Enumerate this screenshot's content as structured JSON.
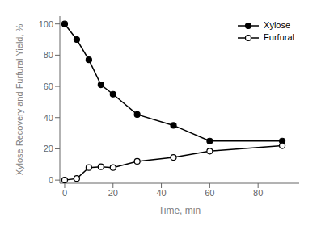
{
  "chart_data": {
    "type": "line",
    "xlabel": "Time, min",
    "ylabel": "Xylose Recovery and Furfural Yield, %",
    "x": [
      0,
      5,
      10,
      15,
      20,
      30,
      45,
      60,
      90
    ],
    "series": [
      {
        "name": "Xylose",
        "color": "#000000",
        "marker": "filled_circle",
        "values": [
          100,
          90,
          77,
          61,
          55,
          42,
          35,
          25,
          25
        ]
      },
      {
        "name": "Furfural",
        "color": "#000000",
        "marker": "open_circle",
        "values": [
          0,
          1,
          8,
          8.5,
          8,
          12,
          14.5,
          18.5,
          22
        ]
      }
    ],
    "xlim": [
      -2,
      97
    ],
    "xticks": [
      0,
      20,
      40,
      60,
      80
    ],
    "ylim": [
      -2,
      105
    ],
    "yticks": [
      0,
      20,
      40,
      60,
      80,
      100
    ],
    "grid": false,
    "legend": "upper right"
  }
}
